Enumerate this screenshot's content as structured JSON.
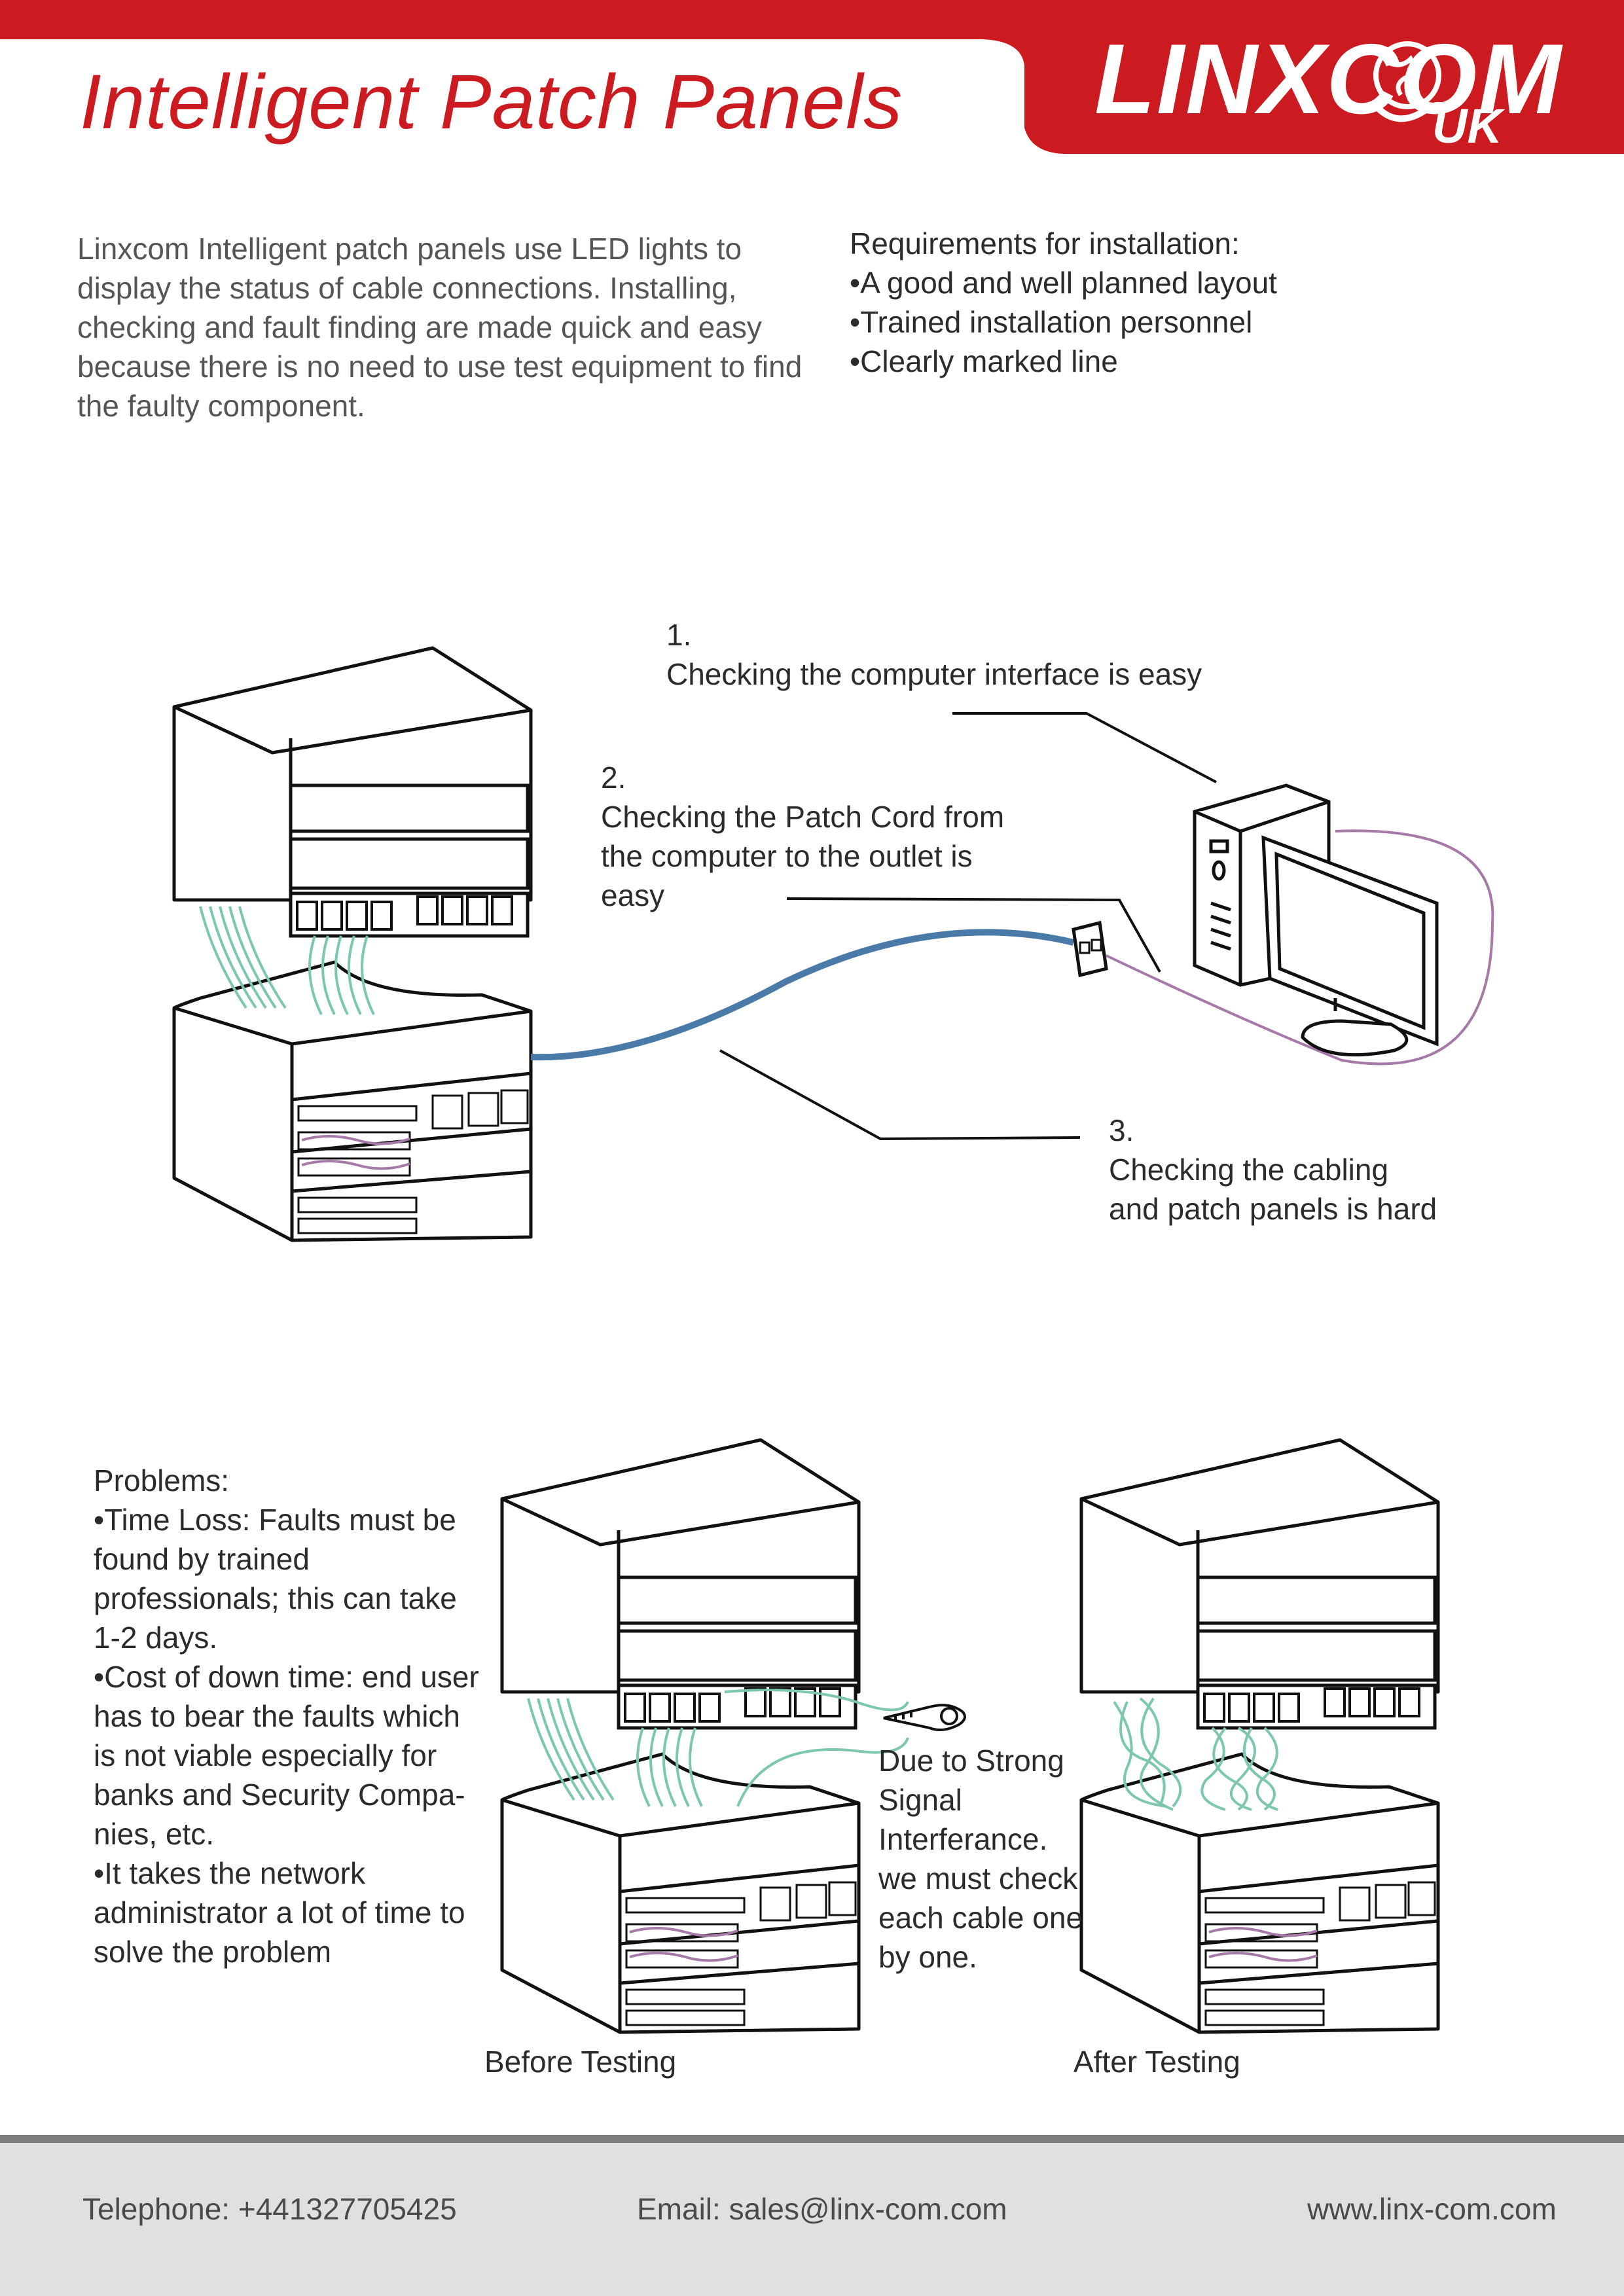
{
  "header": {
    "title": "Intelligent Patch Panels",
    "logo_main": "LINXCOM",
    "logo_sub": "UK",
    "brand_color": "#cc1b20"
  },
  "intro": {
    "lines": [
      "Linxcom Intelligent patch panels use LED lights to",
      "display the status of cable connections. Installing,",
      "checking and fault finding are made quick and easy",
      "because there is no need to use test equipment to find",
      "the faulty component."
    ]
  },
  "requirements": {
    "heading": "Requirements for installation:",
    "items": [
      "•A good and well planned layout",
      "•Trained installation personnel",
      "•Clearly marked line"
    ]
  },
  "callouts": {
    "one": {
      "number": "1.",
      "lines": [
        "Checking the computer interface is easy"
      ]
    },
    "two": {
      "number": "2.",
      "lines": [
        "Checking the Patch Cord from",
        "the computer to the outlet is",
        "easy"
      ]
    },
    "three": {
      "number": "3.",
      "lines": [
        "Checking the cabling",
        "and patch panels is hard"
      ]
    }
  },
  "problems": {
    "heading": "Problems:",
    "lines": [
      "•Time Loss: Faults must be",
      "found by trained",
      "professionals; this can take",
      "1-2 days.",
      "•Cost of down time: end user",
      "has to bear the faults which",
      "is not viable especially for",
      "banks and Security Compa-",
      "nies, etc.",
      "•It takes the network",
      "administrator a lot of time to",
      "solve the problem"
    ]
  },
  "interference_note": {
    "lines": [
      "Due to Strong",
      "Signal",
      "Interferance.",
      "we must check",
      "each cable one",
      "by one."
    ]
  },
  "captions": {
    "before": "Before Testing",
    "after": "After Testing"
  },
  "footer": {
    "telephone": "Telephone: +441327705425",
    "email": "Email: sales@linx-com.com",
    "website": "www.linx-com.com"
  },
  "colors": {
    "cable_blue": "#4a7aa8",
    "cable_green": "#7cc7ae",
    "cable_purple": "#a57aa8",
    "footer_bg": "#e0e0df"
  }
}
